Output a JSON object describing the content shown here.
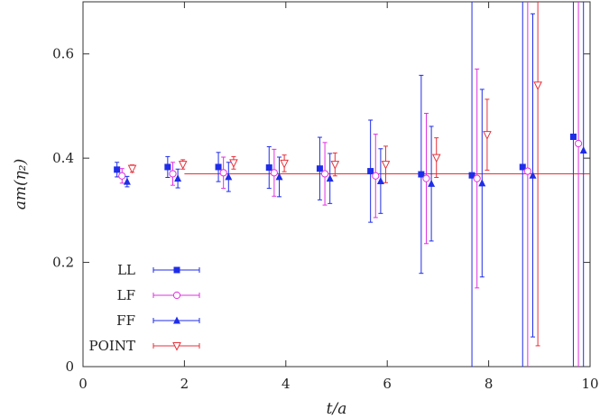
{
  "chart_data": {
    "type": "scatter",
    "title": "",
    "xlabel": "t/a",
    "ylabel": "am(η₂)",
    "xlim": [
      0,
      10
    ],
    "ylim": [
      0,
      0.7
    ],
    "xticks": [
      "0",
      "2",
      "4",
      "6",
      "8",
      "10"
    ],
    "yticks": [
      "0",
      "0.2",
      "0.4",
      "0.6"
    ],
    "grid": false,
    "legend_position": "bottom-left",
    "fit_line": {
      "y": 0.37,
      "x_start": 2,
      "x_end": 10,
      "color": "#e8303a"
    },
    "series": [
      {
        "name": "LL",
        "marker": "filled-square",
        "color": "#1f2de8",
        "points": [
          {
            "x": 0.67,
            "y": 0.378,
            "err": 0.014
          },
          {
            "x": 1.67,
            "y": 0.383,
            "err": 0.02
          },
          {
            "x": 2.67,
            "y": 0.383,
            "err": 0.028
          },
          {
            "x": 3.67,
            "y": 0.382,
            "err": 0.04
          },
          {
            "x": 4.67,
            "y": 0.38,
            "err": 0.06
          },
          {
            "x": 5.67,
            "y": 0.375,
            "err": 0.098
          },
          {
            "x": 6.67,
            "y": 0.369,
            "err": 0.19
          },
          {
            "x": 7.67,
            "y": 0.367,
            "err": 0.5
          },
          {
            "x": 8.67,
            "y": 0.383,
            "err": 0.5
          },
          {
            "x": 9.67,
            "y": 0.441,
            "err": 0.5
          }
        ]
      },
      {
        "name": "LF",
        "marker": "open-circle",
        "color": "#e030e0",
        "points": [
          {
            "x": 0.77,
            "y": 0.366,
            "err": 0.014
          },
          {
            "x": 1.77,
            "y": 0.37,
            "err": 0.022
          },
          {
            "x": 2.77,
            "y": 0.372,
            "err": 0.03
          },
          {
            "x": 3.77,
            "y": 0.372,
            "err": 0.045
          },
          {
            "x": 4.77,
            "y": 0.37,
            "err": 0.06
          },
          {
            "x": 5.77,
            "y": 0.366,
            "err": 0.08
          },
          {
            "x": 6.77,
            "y": 0.361,
            "err": 0.125
          },
          {
            "x": 7.77,
            "y": 0.361,
            "err": 0.21
          },
          {
            "x": 8.77,
            "y": 0.375,
            "err": 0.5
          },
          {
            "x": 9.77,
            "y": 0.428,
            "err": 0.5
          }
        ]
      },
      {
        "name": "FF",
        "marker": "filled-triangle",
        "color": "#1f2de8",
        "points": [
          {
            "x": 0.87,
            "y": 0.355,
            "err": 0.01
          },
          {
            "x": 1.87,
            "y": 0.361,
            "err": 0.018
          },
          {
            "x": 2.87,
            "y": 0.364,
            "err": 0.028
          },
          {
            "x": 3.87,
            "y": 0.364,
            "err": 0.038
          },
          {
            "x": 4.87,
            "y": 0.361,
            "err": 0.048
          },
          {
            "x": 5.87,
            "y": 0.356,
            "err": 0.062
          },
          {
            "x": 6.87,
            "y": 0.351,
            "err": 0.11
          },
          {
            "x": 7.87,
            "y": 0.352,
            "err": 0.18
          },
          {
            "x": 8.87,
            "y": 0.367,
            "err": 0.31
          },
          {
            "x": 9.87,
            "y": 0.415,
            "err": 0.5
          }
        ]
      },
      {
        "name": "POINT",
        "marker": "open-triangle-down",
        "color": "#e8303a",
        "points": [
          {
            "x": 0.97,
            "y": 0.38,
            "err": 0.007
          },
          {
            "x": 1.97,
            "y": 0.388,
            "err": 0.009
          },
          {
            "x": 2.97,
            "y": 0.391,
            "err": 0.012
          },
          {
            "x": 3.97,
            "y": 0.39,
            "err": 0.016
          },
          {
            "x": 4.97,
            "y": 0.388,
            "err": 0.022
          },
          {
            "x": 5.97,
            "y": 0.388,
            "err": 0.035
          },
          {
            "x": 6.97,
            "y": 0.401,
            "err": 0.038
          },
          {
            "x": 7.97,
            "y": 0.445,
            "err": 0.068
          },
          {
            "x": 8.97,
            "y": 0.54,
            "err": 0.5
          }
        ]
      }
    ]
  }
}
